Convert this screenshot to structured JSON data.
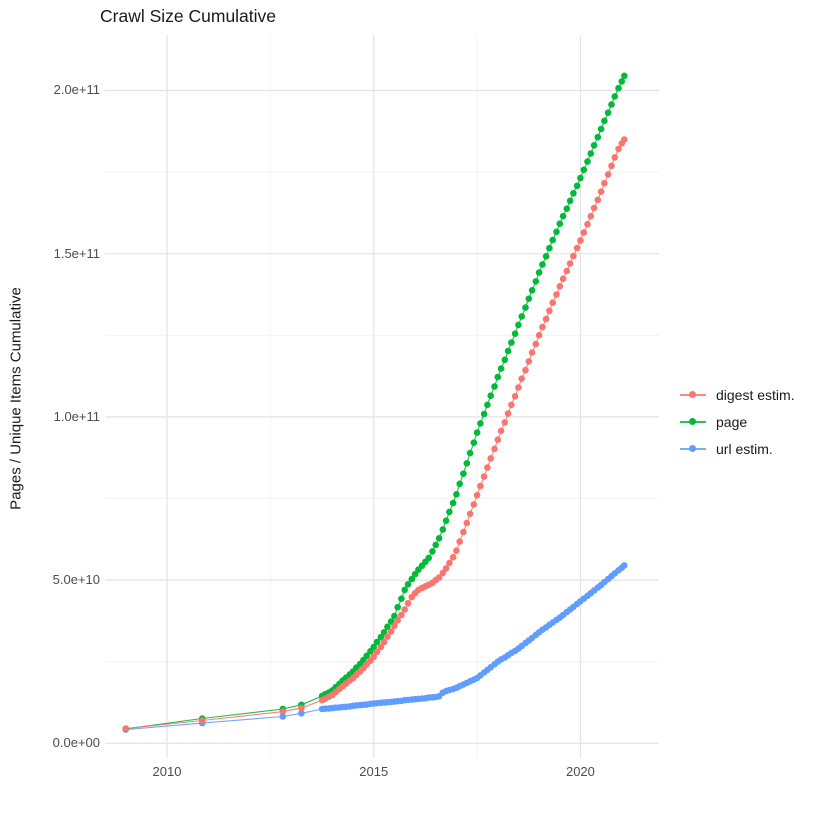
{
  "title": "Crawl Size Cumulative",
  "chart_data": {
    "type": "scatter",
    "title": "Crawl Size Cumulative",
    "xlabel": "",
    "ylabel": "Pages / Unique Items Cumulative",
    "legend_position": "right",
    "background": "#ffffff",
    "grid": {
      "major_color": "#e3e3e3",
      "minor_color": "#f0f0f0",
      "on": true
    },
    "x_ticks": [
      {
        "value": 2010,
        "label": "2010"
      },
      {
        "value": 2015,
        "label": "2015"
      },
      {
        "value": 2020,
        "label": "2020"
      }
    ],
    "x_minor": [
      2012.5,
      2017.5
    ],
    "y_unit": 10000000000.0,
    "y_ticks": [
      {
        "value": 0,
        "label": "0.0e+00"
      },
      {
        "value": 5,
        "label": "5.0e+10"
      },
      {
        "value": 10,
        "label": "1.0e+11"
      },
      {
        "value": 15,
        "label": "1.5e+11"
      },
      {
        "value": 20,
        "label": "2.0e+11"
      }
    ],
    "y_minor": [
      2.5,
      7.5,
      12.5,
      17.5
    ],
    "xlim": [
      2008.5,
      2021.9
    ],
    "ylim": [
      -0.45,
      21.7
    ],
    "series": [
      {
        "name": "url estim.",
        "color": "#619CFF",
        "points": [
          [
            2009.0,
            0.42
          ],
          [
            2010.85,
            0.62
          ],
          [
            2012.8,
            0.82
          ],
          [
            2013.25,
            0.92
          ],
          [
            2013.75,
            1.05
          ],
          [
            2013.83,
            1.06
          ],
          [
            2013.92,
            1.07
          ],
          [
            2014.0,
            1.08
          ],
          [
            2014.08,
            1.09
          ],
          [
            2014.17,
            1.1
          ],
          [
            2014.25,
            1.11
          ],
          [
            2014.33,
            1.12
          ],
          [
            2014.42,
            1.13
          ],
          [
            2014.5,
            1.15
          ],
          [
            2014.58,
            1.16
          ],
          [
            2014.67,
            1.17
          ],
          [
            2014.75,
            1.18
          ],
          [
            2014.83,
            1.19
          ],
          [
            2014.92,
            1.21
          ],
          [
            2015.0,
            1.22
          ],
          [
            2015.08,
            1.23
          ],
          [
            2015.17,
            1.24
          ],
          [
            2015.25,
            1.25
          ],
          [
            2015.33,
            1.26
          ],
          [
            2015.42,
            1.27
          ],
          [
            2015.5,
            1.28
          ],
          [
            2015.58,
            1.29
          ],
          [
            2015.67,
            1.3
          ],
          [
            2015.75,
            1.32
          ],
          [
            2015.83,
            1.33
          ],
          [
            2015.92,
            1.34
          ],
          [
            2016.0,
            1.35
          ],
          [
            2016.08,
            1.36
          ],
          [
            2016.17,
            1.37
          ],
          [
            2016.25,
            1.38
          ],
          [
            2016.33,
            1.4
          ],
          [
            2016.42,
            1.41
          ],
          [
            2016.5,
            1.42
          ],
          [
            2016.58,
            1.44
          ],
          [
            2016.67,
            1.55
          ],
          [
            2016.75,
            1.6
          ],
          [
            2016.83,
            1.63
          ],
          [
            2016.92,
            1.66
          ],
          [
            2017.0,
            1.7
          ],
          [
            2017.08,
            1.75
          ],
          [
            2017.17,
            1.8
          ],
          [
            2017.25,
            1.85
          ],
          [
            2017.33,
            1.9
          ],
          [
            2017.42,
            1.95
          ],
          [
            2017.5,
            2.0
          ],
          [
            2017.58,
            2.08
          ],
          [
            2017.67,
            2.17
          ],
          [
            2017.75,
            2.25
          ],
          [
            2017.83,
            2.33
          ],
          [
            2017.92,
            2.42
          ],
          [
            2018.0,
            2.5
          ],
          [
            2018.08,
            2.57
          ],
          [
            2018.17,
            2.63
          ],
          [
            2018.25,
            2.7
          ],
          [
            2018.33,
            2.77
          ],
          [
            2018.42,
            2.83
          ],
          [
            2018.5,
            2.9
          ],
          [
            2018.58,
            2.98
          ],
          [
            2018.67,
            3.07
          ],
          [
            2018.75,
            3.15
          ],
          [
            2018.83,
            3.23
          ],
          [
            2018.92,
            3.32
          ],
          [
            2019.0,
            3.4
          ],
          [
            2019.08,
            3.48
          ],
          [
            2019.17,
            3.55
          ],
          [
            2019.25,
            3.63
          ],
          [
            2019.33,
            3.7
          ],
          [
            2019.42,
            3.78
          ],
          [
            2019.5,
            3.85
          ],
          [
            2019.58,
            3.93
          ],
          [
            2019.67,
            4.02
          ],
          [
            2019.75,
            4.1
          ],
          [
            2019.83,
            4.18
          ],
          [
            2019.92,
            4.27
          ],
          [
            2020.0,
            4.35
          ],
          [
            2020.08,
            4.43
          ],
          [
            2020.17,
            4.52
          ],
          [
            2020.25,
            4.6
          ],
          [
            2020.33,
            4.68
          ],
          [
            2020.42,
            4.77
          ],
          [
            2020.5,
            4.85
          ],
          [
            2020.58,
            4.94
          ],
          [
            2020.67,
            5.03
          ],
          [
            2020.75,
            5.12
          ],
          [
            2020.83,
            5.21
          ],
          [
            2020.92,
            5.3
          ],
          [
            2021.0,
            5.38
          ],
          [
            2021.06,
            5.45
          ]
        ]
      },
      {
        "name": "page",
        "color": "#00BA38",
        "points": [
          [
            2009.0,
            0.44
          ],
          [
            2010.85,
            0.76
          ],
          [
            2012.8,
            1.05
          ],
          [
            2013.25,
            1.18
          ],
          [
            2013.75,
            1.45
          ],
          [
            2013.83,
            1.51
          ],
          [
            2013.92,
            1.56
          ],
          [
            2014.0,
            1.62
          ],
          [
            2014.08,
            1.72
          ],
          [
            2014.17,
            1.82
          ],
          [
            2014.25,
            1.92
          ],
          [
            2014.33,
            2.01
          ],
          [
            2014.42,
            2.11
          ],
          [
            2014.5,
            2.2
          ],
          [
            2014.58,
            2.32
          ],
          [
            2014.67,
            2.43
          ],
          [
            2014.75,
            2.55
          ],
          [
            2014.83,
            2.68
          ],
          [
            2014.92,
            2.82
          ],
          [
            2015.0,
            2.95
          ],
          [
            2015.08,
            3.1
          ],
          [
            2015.17,
            3.25
          ],
          [
            2015.25,
            3.4
          ],
          [
            2015.33,
            3.57
          ],
          [
            2015.42,
            3.73
          ],
          [
            2015.5,
            3.9
          ],
          [
            2015.58,
            4.17
          ],
          [
            2015.67,
            4.43
          ],
          [
            2015.75,
            4.7
          ],
          [
            2015.83,
            4.87
          ],
          [
            2015.92,
            5.03
          ],
          [
            2016.0,
            5.18
          ],
          [
            2016.08,
            5.32
          ],
          [
            2016.17,
            5.44
          ],
          [
            2016.25,
            5.56
          ],
          [
            2016.33,
            5.68
          ],
          [
            2016.42,
            5.88
          ],
          [
            2016.5,
            6.08
          ],
          [
            2016.58,
            6.28
          ],
          [
            2016.67,
            6.55
          ],
          [
            2016.75,
            6.82
          ],
          [
            2016.83,
            7.09
          ],
          [
            2016.92,
            7.36
          ],
          [
            2017.0,
            7.63
          ],
          [
            2017.08,
            7.95
          ],
          [
            2017.17,
            8.26
          ],
          [
            2017.25,
            8.58
          ],
          [
            2017.33,
            8.89
          ],
          [
            2017.42,
            9.21
          ],
          [
            2017.5,
            9.52
          ],
          [
            2017.58,
            9.8
          ],
          [
            2017.67,
            10.09
          ],
          [
            2017.75,
            10.37
          ],
          [
            2017.83,
            10.65
          ],
          [
            2017.92,
            10.93
          ],
          [
            2018.0,
            11.22
          ],
          [
            2018.08,
            11.48
          ],
          [
            2018.17,
            11.75
          ],
          [
            2018.25,
            12.02
          ],
          [
            2018.33,
            12.28
          ],
          [
            2018.42,
            12.55
          ],
          [
            2018.5,
            12.82
          ],
          [
            2018.58,
            13.08
          ],
          [
            2018.67,
            13.35
          ],
          [
            2018.75,
            13.62
          ],
          [
            2018.83,
            13.88
          ],
          [
            2018.92,
            14.15
          ],
          [
            2019.0,
            14.42
          ],
          [
            2019.08,
            14.67
          ],
          [
            2019.17,
            14.92
          ],
          [
            2019.25,
            15.17
          ],
          [
            2019.33,
            15.42
          ],
          [
            2019.42,
            15.67
          ],
          [
            2019.5,
            15.92
          ],
          [
            2019.58,
            16.15
          ],
          [
            2019.67,
            16.38
          ],
          [
            2019.75,
            16.62
          ],
          [
            2019.83,
            16.85
          ],
          [
            2019.92,
            17.08
          ],
          [
            2020.0,
            17.32
          ],
          [
            2020.08,
            17.57
          ],
          [
            2020.17,
            17.82
          ],
          [
            2020.25,
            18.07
          ],
          [
            2020.33,
            18.32
          ],
          [
            2020.42,
            18.57
          ],
          [
            2020.5,
            18.82
          ],
          [
            2020.58,
            19.07
          ],
          [
            2020.67,
            19.32
          ],
          [
            2020.75,
            19.57
          ],
          [
            2020.83,
            19.82
          ],
          [
            2020.92,
            20.07
          ],
          [
            2021.0,
            20.28
          ],
          [
            2021.06,
            20.45
          ]
        ]
      },
      {
        "name": "digest estim.",
        "color": "#F8766D",
        "points": [
          [
            2009.0,
            0.45
          ],
          [
            2010.85,
            0.7
          ],
          [
            2012.8,
            0.97
          ],
          [
            2013.25,
            1.08
          ],
          [
            2013.75,
            1.32
          ],
          [
            2013.83,
            1.37
          ],
          [
            2013.92,
            1.43
          ],
          [
            2014.0,
            1.48
          ],
          [
            2014.08,
            1.57
          ],
          [
            2014.17,
            1.66
          ],
          [
            2014.25,
            1.75
          ],
          [
            2014.33,
            1.83
          ],
          [
            2014.42,
            1.92
          ],
          [
            2014.5,
            2.0
          ],
          [
            2014.58,
            2.1
          ],
          [
            2014.67,
            2.2
          ],
          [
            2014.75,
            2.3
          ],
          [
            2014.83,
            2.42
          ],
          [
            2014.92,
            2.53
          ],
          [
            2015.0,
            2.65
          ],
          [
            2015.08,
            2.8
          ],
          [
            2015.17,
            2.95
          ],
          [
            2015.25,
            3.1
          ],
          [
            2015.33,
            3.27
          ],
          [
            2015.42,
            3.43
          ],
          [
            2015.5,
            3.6
          ],
          [
            2015.58,
            3.77
          ],
          [
            2015.67,
            3.93
          ],
          [
            2015.75,
            4.1
          ],
          [
            2015.83,
            4.29
          ],
          [
            2015.92,
            4.48
          ],
          [
            2016.0,
            4.6
          ],
          [
            2016.08,
            4.7
          ],
          [
            2016.17,
            4.76
          ],
          [
            2016.25,
            4.81
          ],
          [
            2016.33,
            4.86
          ],
          [
            2016.42,
            4.91
          ],
          [
            2016.5,
            5.0
          ],
          [
            2016.58,
            5.08
          ],
          [
            2016.67,
            5.22
          ],
          [
            2016.75,
            5.36
          ],
          [
            2016.83,
            5.52
          ],
          [
            2016.92,
            5.7
          ],
          [
            2017.0,
            5.9
          ],
          [
            2017.08,
            6.18
          ],
          [
            2017.17,
            6.47
          ],
          [
            2017.25,
            6.75
          ],
          [
            2017.33,
            7.03
          ],
          [
            2017.42,
            7.32
          ],
          [
            2017.5,
            7.6
          ],
          [
            2017.58,
            7.88
          ],
          [
            2017.67,
            8.17
          ],
          [
            2017.75,
            8.45
          ],
          [
            2017.83,
            8.73
          ],
          [
            2017.92,
            9.02
          ],
          [
            2018.0,
            9.3
          ],
          [
            2018.08,
            9.57
          ],
          [
            2018.17,
            9.83
          ],
          [
            2018.25,
            10.1
          ],
          [
            2018.33,
            10.37
          ],
          [
            2018.42,
            10.63
          ],
          [
            2018.5,
            10.9
          ],
          [
            2018.58,
            11.17
          ],
          [
            2018.67,
            11.43
          ],
          [
            2018.75,
            11.7
          ],
          [
            2018.83,
            11.97
          ],
          [
            2018.92,
            12.23
          ],
          [
            2019.0,
            12.5
          ],
          [
            2019.08,
            12.75
          ],
          [
            2019.17,
            13.0
          ],
          [
            2019.25,
            13.25
          ],
          [
            2019.33,
            13.5
          ],
          [
            2019.42,
            13.75
          ],
          [
            2019.5,
            14.0
          ],
          [
            2019.58,
            14.23
          ],
          [
            2019.67,
            14.47
          ],
          [
            2019.75,
            14.7
          ],
          [
            2019.83,
            14.93
          ],
          [
            2019.92,
            15.17
          ],
          [
            2020.0,
            15.4
          ],
          [
            2020.08,
            15.65
          ],
          [
            2020.17,
            15.9
          ],
          [
            2020.25,
            16.15
          ],
          [
            2020.33,
            16.4
          ],
          [
            2020.42,
            16.65
          ],
          [
            2020.5,
            16.9
          ],
          [
            2020.58,
            17.16
          ],
          [
            2020.67,
            17.43
          ],
          [
            2020.75,
            17.69
          ],
          [
            2020.83,
            17.95
          ],
          [
            2020.92,
            18.21
          ],
          [
            2021.0,
            18.38
          ],
          [
            2021.06,
            18.5
          ]
        ]
      }
    ],
    "legend": [
      {
        "label": "digest estim.",
        "color": "#F8766D"
      },
      {
        "label": "page",
        "color": "#00BA38"
      },
      {
        "label": "url estim.",
        "color": "#619CFF"
      }
    ]
  }
}
